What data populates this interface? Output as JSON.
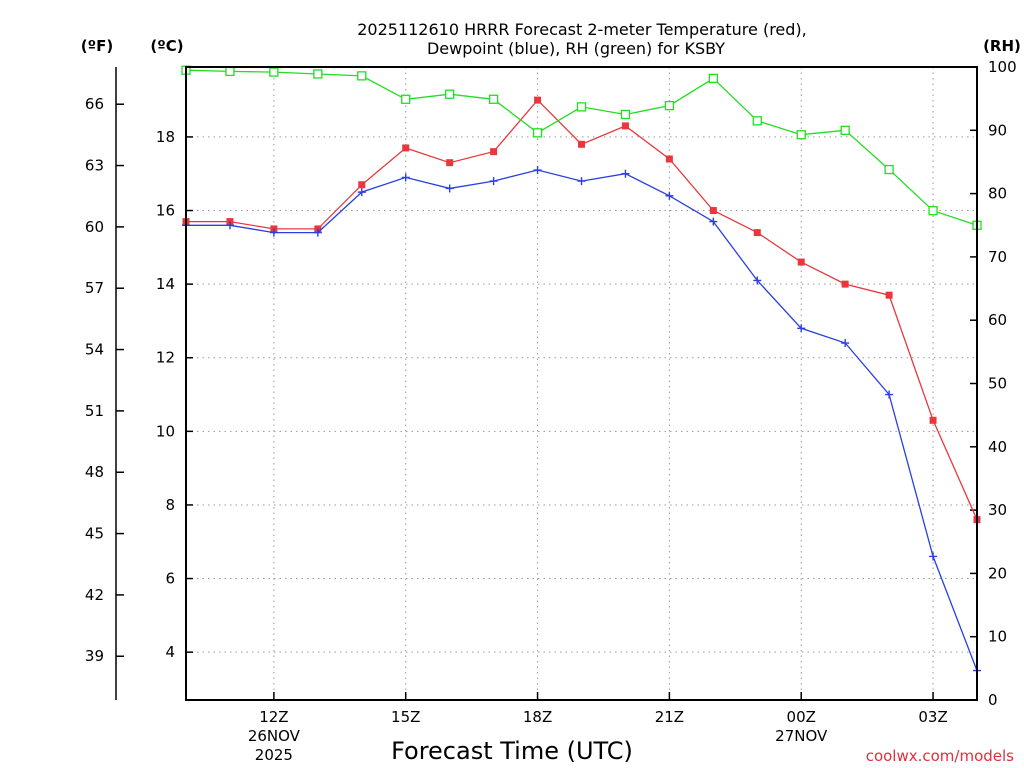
{
  "chart_data": {
    "type": "line",
    "title_line1": "2025112610 HRRR Forecast 2-meter Temperature (red),",
    "title_line2": "Dewpoint (blue), RH (green) for KSBY",
    "xlabel": "Forecast Time (UTC)",
    "credit": "coolwx.com/models",
    "units": {
      "fahrenheit": "(ºF)",
      "celsius": "(ºC)",
      "rh": "(RH)"
    },
    "x_hours": [
      10,
      11,
      12,
      13,
      14,
      15,
      16,
      17,
      18,
      19,
      20,
      21,
      22,
      23,
      24,
      25,
      26,
      27,
      28
    ],
    "xlim": [
      10,
      28
    ],
    "x_ticks": [
      {
        "hour": 12,
        "label": "12Z",
        "sub1": "26NOV",
        "sub2": "2025"
      },
      {
        "hour": 15,
        "label": "15Z",
        "sub1": "",
        "sub2": ""
      },
      {
        "hour": 18,
        "label": "18Z",
        "sub1": "",
        "sub2": ""
      },
      {
        "hour": 21,
        "label": "21Z",
        "sub1": "",
        "sub2": ""
      },
      {
        "hour": 24,
        "label": "00Z",
        "sub1": "27NOV",
        "sub2": ""
      },
      {
        "hour": 27,
        "label": "03Z",
        "sub1": "",
        "sub2": ""
      }
    ],
    "celsius_axis": {
      "range": [
        2.7,
        19.9
      ],
      "ticks": [
        4,
        6,
        8,
        10,
        12,
        14,
        16,
        18
      ]
    },
    "fahrenheit_axis": {
      "ticks": [
        39,
        42,
        45,
        48,
        51,
        54,
        57,
        60,
        63,
        66
      ]
    },
    "rh_axis": {
      "range": [
        0,
        100
      ],
      "ticks": [
        0,
        10,
        20,
        30,
        40,
        50,
        60,
        70,
        80,
        90,
        100
      ]
    },
    "series": [
      {
        "name": "Temperature",
        "color": "#e8383d",
        "marker": "filled-square",
        "axis": "celsius",
        "values": [
          15.7,
          15.7,
          15.5,
          15.5,
          16.7,
          17.7,
          17.3,
          17.6,
          19.0,
          17.8,
          18.3,
          17.4,
          16.0,
          15.4,
          14.6,
          14.0,
          13.7,
          10.3,
          7.6
        ]
      },
      {
        "name": "Dewpoint",
        "color": "#2a3fe0",
        "marker": "plus",
        "axis": "celsius",
        "values": [
          15.6,
          15.6,
          15.4,
          15.4,
          16.5,
          16.9,
          16.6,
          16.8,
          17.1,
          16.8,
          17.0,
          16.4,
          15.7,
          14.1,
          12.8,
          12.4,
          11.0,
          6.6,
          3.5
        ]
      },
      {
        "name": "RH",
        "color": "#22dd22",
        "marker": "open-square",
        "axis": "rh",
        "values": [
          99.5,
          99.3,
          99.2,
          98.9,
          98.6,
          94.9,
          95.7,
          94.9,
          89.6,
          93.7,
          92.5,
          93.9,
          98.2,
          91.5,
          89.3,
          90.0,
          83.8,
          77.3,
          75.0
        ]
      }
    ]
  }
}
